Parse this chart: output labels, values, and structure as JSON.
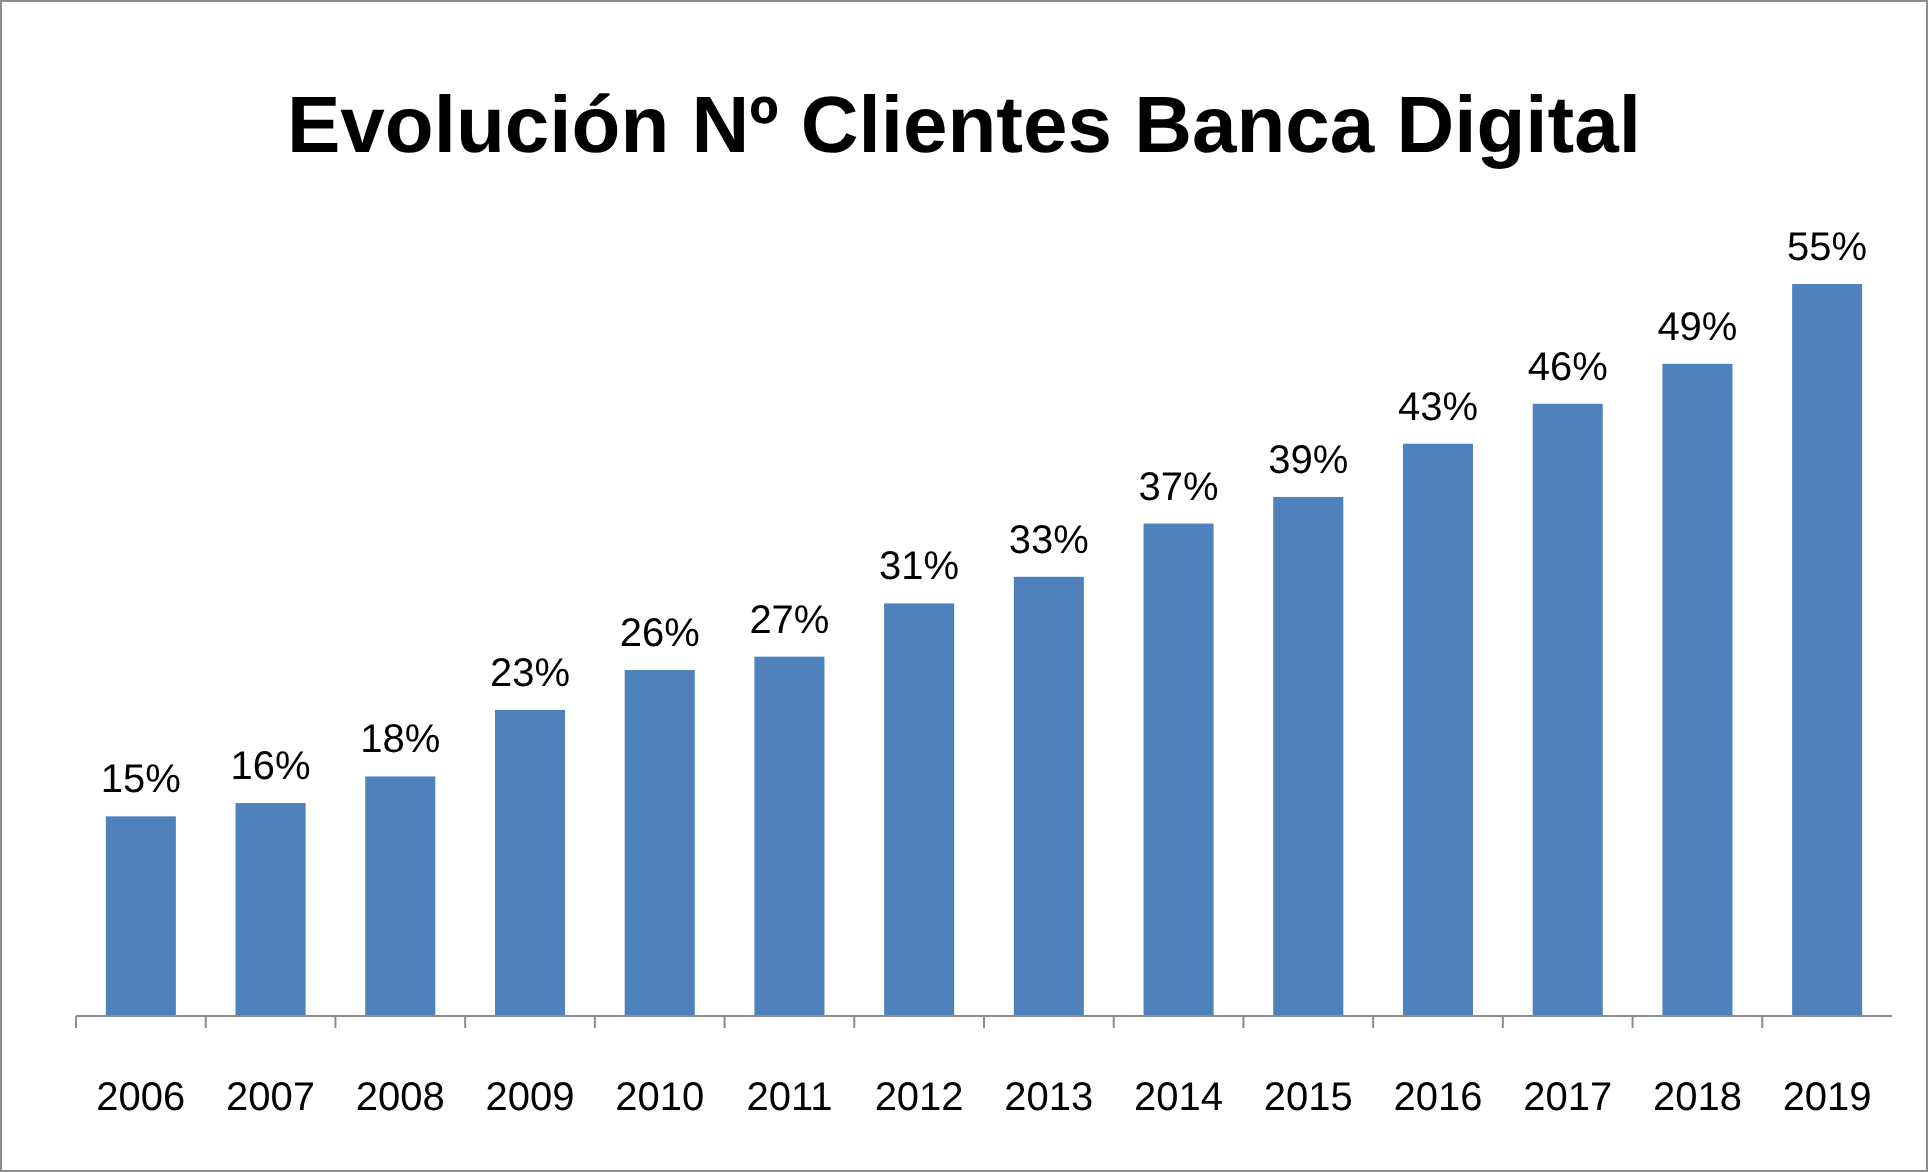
{
  "chart_data": {
    "type": "bar",
    "title": "Evolución Nº Clientes Banca Digital",
    "categories": [
      "2006",
      "2007",
      "2008",
      "2009",
      "2010",
      "2011",
      "2012",
      "2013",
      "2014",
      "2015",
      "2016",
      "2017",
      "2018",
      "2019"
    ],
    "values": [
      15,
      16,
      18,
      23,
      26,
      27,
      31,
      33,
      37,
      39,
      43,
      46,
      49,
      55
    ],
    "value_labels": [
      "15%",
      "16%",
      "18%",
      "23%",
      "26%",
      "27%",
      "31%",
      "33%",
      "37%",
      "39%",
      "43%",
      "46%",
      "49%",
      "55%"
    ],
    "color": "#4f81bd"
  }
}
